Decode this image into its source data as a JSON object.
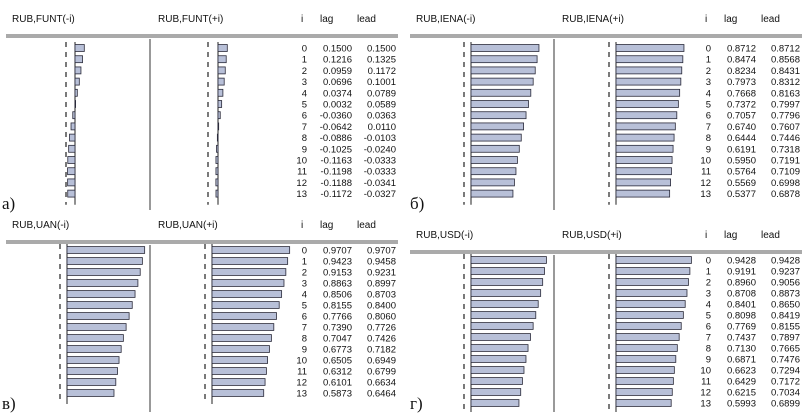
{
  "chart_data": [
    {
      "type": "bar",
      "panel_label": "а)",
      "headers": {
        "left": "RUB,FUNT(-i)",
        "right": "RUB,FUNT(+i)",
        "i": "i",
        "lag": "lag",
        "lead": "lead"
      },
      "i": [
        "0",
        "1",
        "2",
        "3",
        "4",
        "5",
        "6",
        "7",
        "8",
        "9",
        "10",
        "11",
        "12",
        "13"
      ],
      "lag": [
        "0.1500",
        "0.1216",
        "0.0959",
        "0.0696",
        "0.0374",
        "0.0032",
        "-0.0360",
        "-0.0642",
        "-0.0886",
        "-0.1025",
        "-0.1163",
        "-0.1198",
        "-0.1188",
        "-0.1172"
      ],
      "lead": [
        "0.1500",
        "0.1325",
        "0.1172",
        "0.1001",
        "0.0789",
        "0.0589",
        "0.0363",
        "0.0110",
        "-0.0103",
        "-0.0240",
        "-0.0333",
        "-0.0333",
        "-0.0341",
        "-0.0327"
      ]
    },
    {
      "type": "bar",
      "panel_label": "б)",
      "headers": {
        "left": "RUB,IENA(-i)",
        "right": "RUB,IENA(+i)",
        "i": "i",
        "lag": "lag",
        "lead": "lead"
      },
      "i": [
        "0",
        "1",
        "2",
        "3",
        "4",
        "5",
        "6",
        "7",
        "8",
        "9",
        "10",
        "11",
        "12",
        "13"
      ],
      "lag": [
        "0.8712",
        "0.8474",
        "0.8234",
        "0.7973",
        "0.7668",
        "0.7372",
        "0.7057",
        "0.6740",
        "0.6444",
        "0.6191",
        "0.5950",
        "0.5764",
        "0.5569",
        "0.5377"
      ],
      "lead": [
        "0.8712",
        "0.8568",
        "0.8431",
        "0.8312",
        "0.8163",
        "0.7997",
        "0.7796",
        "0.7607",
        "0.7446",
        "0.7318",
        "0.7191",
        "0.7109",
        "0.6998",
        "0.6878"
      ]
    },
    {
      "type": "bar",
      "panel_label": "в)",
      "headers": {
        "left": "RUB,UAN(-i)",
        "right": "RUB,UAN(+i)",
        "i": "i",
        "lag": "lag",
        "lead": "lead"
      },
      "i": [
        "0",
        "1",
        "2",
        "3",
        "4",
        "5",
        "6",
        "7",
        "8",
        "9",
        "10",
        "11",
        "12",
        "13"
      ],
      "lag": [
        "0.9707",
        "0.9423",
        "0.9153",
        "0.8863",
        "0.8506",
        "0.8155",
        "0.7766",
        "0.7390",
        "0.7047",
        "0.6773",
        "0.6505",
        "0.6312",
        "0.6101",
        "0.5873"
      ],
      "lead": [
        "0.9707",
        "0.9458",
        "0.9231",
        "0.8997",
        "0.8703",
        "0.8400",
        "0.8060",
        "0.7726",
        "0.7426",
        "0.7182",
        "0.6949",
        "0.6799",
        "0.6634",
        "0.6464"
      ]
    },
    {
      "type": "bar",
      "panel_label": "г)",
      "headers": {
        "left": "RUB,USD(-i)",
        "right": "RUB,USD(+i)",
        "i": "i",
        "lag": "lag",
        "lead": "lead"
      },
      "i": [
        "0",
        "1",
        "2",
        "3",
        "4",
        "5",
        "6",
        "7",
        "8",
        "9",
        "10",
        "11",
        "12",
        "13"
      ],
      "lag": [
        "0.9428",
        "0.9191",
        "0.8960",
        "0.8708",
        "0.8401",
        "0.8098",
        "0.7769",
        "0.7437",
        "0.7130",
        "0.6871",
        "0.6623",
        "0.6429",
        "0.6215",
        "0.5993"
      ],
      "lead": [
        "0.9428",
        "0.9237",
        "0.9056",
        "0.8873",
        "0.8650",
        "0.8419",
        "0.8155",
        "0.7897",
        "0.7665",
        "0.7476",
        "0.7294",
        "0.7172",
        "0.7034",
        "0.6899"
      ]
    }
  ],
  "style": {
    "bar_fill": "#b8c0d8",
    "bar_stroke": "#2a2a3a",
    "rule_color": "#555555"
  }
}
